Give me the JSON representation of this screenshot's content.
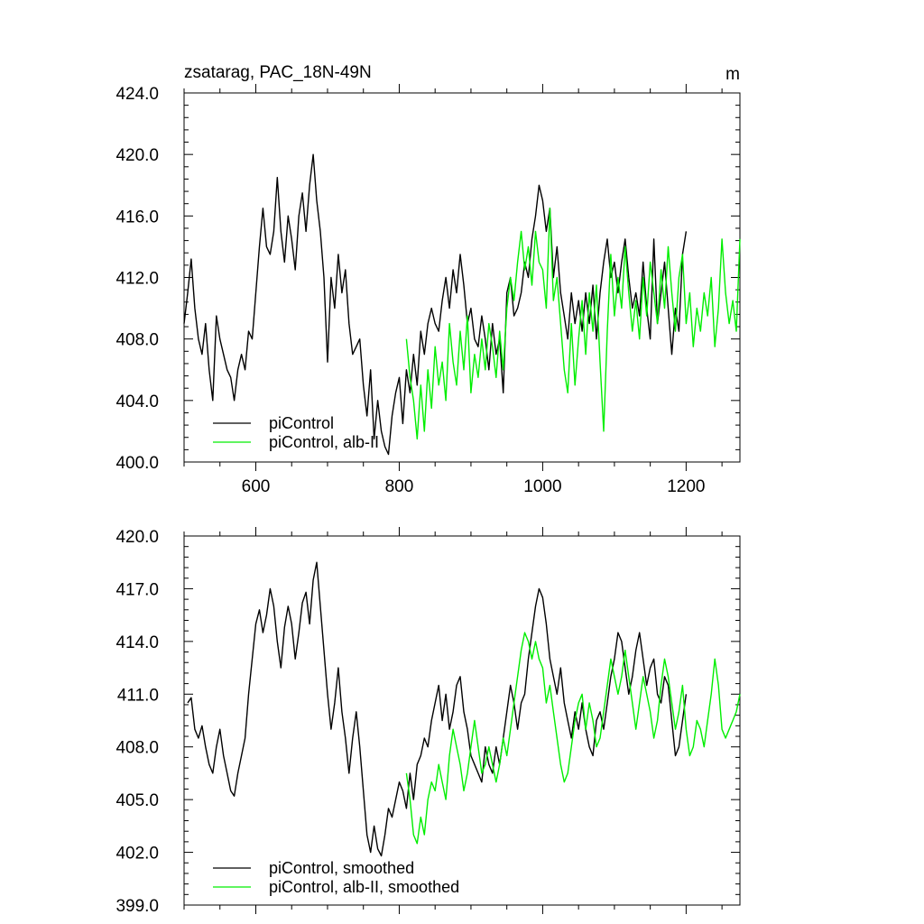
{
  "chart_data": [
    {
      "type": "line",
      "title": "zsatarag, PAC_18N-49N",
      "units_label": "m",
      "xlim": [
        500,
        1275
      ],
      "ylim": [
        400,
        424
      ],
      "x_ticks": [
        600,
        800,
        1000,
        1200
      ],
      "x_tick_labels": [
        "600",
        "800",
        "1000",
        "1200"
      ],
      "y_ticks": [
        400,
        404,
        408,
        412,
        416,
        420,
        424
      ],
      "y_tick_labels": [
        "400.0",
        "404.0",
        "408.0",
        "412.0",
        "416.0",
        "420.0",
        "424.0"
      ],
      "series": [
        {
          "name": "piControl",
          "color": "#000000",
          "x": [
            500,
            505,
            510,
            515,
            520,
            525,
            530,
            535,
            540,
            545,
            550,
            555,
            560,
            565,
            570,
            575,
            580,
            585,
            590,
            595,
            600,
            605,
            610,
            615,
            620,
            625,
            630,
            635,
            640,
            645,
            650,
            655,
            660,
            665,
            670,
            675,
            680,
            685,
            690,
            695,
            700,
            705,
            710,
            715,
            720,
            725,
            730,
            735,
            740,
            745,
            750,
            755,
            760,
            765,
            770,
            775,
            780,
            785,
            790,
            795,
            800,
            805,
            810,
            815,
            820,
            825,
            830,
            835,
            840,
            845,
            850,
            855,
            860,
            865,
            870,
            875,
            880,
            885,
            890,
            895,
            900,
            905,
            910,
            915,
            920,
            925,
            930,
            935,
            940,
            945,
            950,
            955,
            960,
            965,
            970,
            975,
            980,
            985,
            990,
            995,
            1000,
            1005,
            1010,
            1015,
            1020,
            1025,
            1030,
            1035,
            1040,
            1045,
            1050,
            1055,
            1060,
            1065,
            1070,
            1075,
            1080,
            1085,
            1090,
            1095,
            1100,
            1105,
            1110,
            1115,
            1120,
            1125,
            1130,
            1135,
            1140,
            1145,
            1150,
            1155,
            1160,
            1165,
            1170,
            1175,
            1180,
            1185,
            1190,
            1195,
            1200
          ],
          "y": [
            409.0,
            411.0,
            413.2,
            410.0,
            408.0,
            407.0,
            409.0,
            406.0,
            404.0,
            409.5,
            408.0,
            407.0,
            406.0,
            405.5,
            404.0,
            406.0,
            407.0,
            406.0,
            408.5,
            408.0,
            411.0,
            414.0,
            416.5,
            414.0,
            413.5,
            415.0,
            418.5,
            415.0,
            413.0,
            416.0,
            414.5,
            412.5,
            416.0,
            417.5,
            415.0,
            418.0,
            420.0,
            417.0,
            415.0,
            412.0,
            406.5,
            412.0,
            410.0,
            413.5,
            411.0,
            412.5,
            409.0,
            407.0,
            407.5,
            408.0,
            405.0,
            403.0,
            406.0,
            401.5,
            404.0,
            402.0,
            401.0,
            400.5,
            403.0,
            404.5,
            405.5,
            402.5,
            406.0,
            404.5,
            407.0,
            405.0,
            408.5,
            407.0,
            409.0,
            410.0,
            409.0,
            408.5,
            410.5,
            412.0,
            410.0,
            412.5,
            411.0,
            413.5,
            411.5,
            409.0,
            410.0,
            408.0,
            407.5,
            409.5,
            408.0,
            406.0,
            409.0,
            407.0,
            408.0,
            404.5,
            411.0,
            412.0,
            409.5,
            410.0,
            411.0,
            413.0,
            412.0,
            414.5,
            416.0,
            418.0,
            417.0,
            415.0,
            416.5,
            412.0,
            414.0,
            411.0,
            409.5,
            408.0,
            411.0,
            409.0,
            410.5,
            408.5,
            411.0,
            409.0,
            411.5,
            408.0,
            411.0,
            413.0,
            414.5,
            412.0,
            413.0,
            411.0,
            413.0,
            414.5,
            412.0,
            410.0,
            411.0,
            409.5,
            413.0,
            410.0,
            408.0,
            414.5,
            409.0,
            411.0,
            413.0,
            410.0,
            407.0,
            410.0,
            408.5,
            413.5,
            415.0
          ]
        },
        {
          "name": "piControl, alb-II",
          "color": "#00ee00",
          "x": [
            810,
            815,
            820,
            825,
            830,
            835,
            840,
            845,
            850,
            855,
            860,
            865,
            870,
            875,
            880,
            885,
            890,
            895,
            900,
            905,
            910,
            915,
            920,
            925,
            930,
            935,
            940,
            945,
            950,
            955,
            960,
            965,
            970,
            975,
            980,
            985,
            990,
            995,
            1000,
            1005,
            1010,
            1015,
            1020,
            1025,
            1030,
            1035,
            1040,
            1045,
            1050,
            1055,
            1060,
            1065,
            1070,
            1075,
            1080,
            1085,
            1090,
            1095,
            1100,
            1105,
            1110,
            1115,
            1120,
            1125,
            1130,
            1135,
            1140,
            1145,
            1150,
            1155,
            1160,
            1165,
            1170,
            1175,
            1180,
            1185,
            1190,
            1195,
            1200,
            1205,
            1210,
            1215,
            1220,
            1225,
            1230,
            1235,
            1240,
            1245,
            1250,
            1255,
            1260,
            1265,
            1270,
            1275
          ],
          "y": [
            408.0,
            405.5,
            404.0,
            401.5,
            405.0,
            402.0,
            406.0,
            403.5,
            407.5,
            405.0,
            406.5,
            404.0,
            409.0,
            406.5,
            405.0,
            408.5,
            406.0,
            409.5,
            404.5,
            407.0,
            405.5,
            408.0,
            406.0,
            409.0,
            407.5,
            405.5,
            408.5,
            406.0,
            410.0,
            412.0,
            410.5,
            413.0,
            415.0,
            412.5,
            414.0,
            411.5,
            415.0,
            413.0,
            412.5,
            410.0,
            416.5,
            410.5,
            412.0,
            409.0,
            406.0,
            404.5,
            409.0,
            405.0,
            408.0,
            410.5,
            407.0,
            411.0,
            408.5,
            411.5,
            406.5,
            402.0,
            408.5,
            413.5,
            409.5,
            412.0,
            410.0,
            414.0,
            411.0,
            408.5,
            410.5,
            408.0,
            412.0,
            409.5,
            413.0,
            411.0,
            409.0,
            412.5,
            410.0,
            414.0,
            411.0,
            408.5,
            412.0,
            413.5,
            409.0,
            411.0,
            407.5,
            410.0,
            408.5,
            411.0,
            409.5,
            412.0,
            407.5,
            410.0,
            414.5,
            411.0,
            409.0,
            410.5,
            408.5,
            414.5
          ]
        }
      ],
      "legend": [
        "piControl",
        "piControl, alb-II"
      ],
      "legend_position": "bottom-left"
    },
    {
      "type": "line",
      "title": "",
      "xlim": [
        500,
        1275
      ],
      "ylim": [
        399,
        420
      ],
      "x_ticks": [
        600,
        800,
        1000,
        1200
      ],
      "y_ticks": [
        399,
        402,
        405,
        408,
        411,
        414,
        417,
        420
      ],
      "y_tick_labels": [
        "399.0",
        "402.0",
        "405.0",
        "408.0",
        "411.0",
        "414.0",
        "417.0",
        "420.0"
      ],
      "series": [
        {
          "name": "piControl, smoothed",
          "color": "#000000",
          "x": [
            505,
            510,
            515,
            520,
            525,
            530,
            535,
            540,
            545,
            550,
            555,
            560,
            565,
            570,
            575,
            580,
            585,
            590,
            595,
            600,
            605,
            610,
            615,
            620,
            625,
            630,
            635,
            640,
            645,
            650,
            655,
            660,
            665,
            670,
            675,
            680,
            685,
            690,
            695,
            700,
            705,
            710,
            715,
            720,
            725,
            730,
            735,
            740,
            745,
            750,
            755,
            760,
            765,
            770,
            775,
            780,
            785,
            790,
            795,
            800,
            805,
            810,
            815,
            820,
            825,
            830,
            835,
            840,
            845,
            850,
            855,
            860,
            865,
            870,
            875,
            880,
            885,
            890,
            895,
            900,
            905,
            910,
            915,
            920,
            925,
            930,
            935,
            940,
            945,
            950,
            955,
            960,
            965,
            970,
            975,
            980,
            985,
            990,
            995,
            1000,
            1005,
            1010,
            1015,
            1020,
            1025,
            1030,
            1035,
            1040,
            1045,
            1050,
            1055,
            1060,
            1065,
            1070,
            1075,
            1080,
            1085,
            1090,
            1095,
            1100,
            1105,
            1110,
            1115,
            1120,
            1125,
            1130,
            1135,
            1140,
            1145,
            1150,
            1155,
            1160,
            1165,
            1170,
            1175,
            1180,
            1185,
            1190,
            1195,
            1200
          ],
          "y": [
            410.5,
            410.8,
            409.0,
            408.5,
            409.2,
            408.0,
            407.0,
            406.5,
            408.0,
            409.0,
            407.5,
            406.5,
            405.5,
            405.2,
            406.5,
            407.5,
            408.5,
            411.0,
            413.0,
            415.0,
            415.8,
            414.5,
            415.5,
            417.0,
            416.0,
            414.0,
            412.5,
            414.8,
            416.0,
            415.0,
            413.0,
            414.5,
            416.2,
            416.8,
            415.0,
            417.5,
            418.5,
            416.0,
            413.5,
            411.0,
            409.0,
            410.5,
            412.5,
            410.0,
            408.5,
            406.5,
            408.5,
            410.0,
            408.0,
            405.5,
            403.0,
            402.0,
            403.5,
            402.2,
            401.8,
            403.0,
            404.5,
            404.0,
            405.0,
            406.0,
            405.5,
            404.5,
            406.5,
            405.0,
            407.0,
            407.5,
            408.5,
            408.0,
            409.5,
            410.5,
            411.5,
            409.5,
            411.0,
            409.0,
            410.0,
            411.5,
            412.0,
            410.0,
            409.0,
            407.5,
            407.0,
            406.5,
            406.0,
            408.0,
            407.0,
            406.5,
            408.0,
            407.0,
            408.5,
            410.0,
            411.5,
            410.5,
            409.0,
            410.5,
            411.0,
            413.0,
            414.5,
            416.0,
            417.0,
            416.5,
            415.0,
            413.0,
            412.0,
            411.0,
            412.5,
            410.5,
            409.5,
            408.5,
            410.0,
            409.0,
            410.5,
            409.0,
            408.0,
            407.5,
            409.5,
            410.0,
            409.0,
            410.5,
            412.0,
            413.0,
            414.5,
            414.0,
            412.5,
            411.0,
            412.0,
            413.5,
            414.5,
            413.0,
            411.5,
            412.5,
            413.0,
            411.0,
            410.5,
            412.0,
            411.5,
            409.5,
            407.5,
            408.0,
            409.5,
            411.0
          ]
        },
        {
          "name": "piControl, alb-II, smoothed",
          "color": "#00ee00",
          "x": [
            810,
            815,
            820,
            825,
            830,
            835,
            840,
            845,
            850,
            855,
            860,
            865,
            870,
            875,
            880,
            885,
            890,
            895,
            900,
            905,
            910,
            915,
            920,
            925,
            930,
            935,
            940,
            945,
            950,
            955,
            960,
            965,
            970,
            975,
            980,
            985,
            990,
            995,
            1000,
            1005,
            1010,
            1015,
            1020,
            1025,
            1030,
            1035,
            1040,
            1045,
            1050,
            1055,
            1060,
            1065,
            1070,
            1075,
            1080,
            1085,
            1090,
            1095,
            1100,
            1105,
            1110,
            1115,
            1120,
            1125,
            1130,
            1135,
            1140,
            1145,
            1150,
            1155,
            1160,
            1165,
            1170,
            1175,
            1180,
            1185,
            1190,
            1195,
            1200,
            1205,
            1210,
            1215,
            1220,
            1225,
            1230,
            1235,
            1240,
            1245,
            1250,
            1255,
            1260,
            1265,
            1270,
            1275
          ],
          "y": [
            406.5,
            405.0,
            403.0,
            402.5,
            404.0,
            403.0,
            405.0,
            406.0,
            405.5,
            407.0,
            406.0,
            405.0,
            407.5,
            409.0,
            408.0,
            407.0,
            405.5,
            406.5,
            408.0,
            409.5,
            408.0,
            406.5,
            407.0,
            408.0,
            407.0,
            406.0,
            407.0,
            408.5,
            407.5,
            409.0,
            410.5,
            412.0,
            413.5,
            414.5,
            414.0,
            413.0,
            414.0,
            413.0,
            412.5,
            410.5,
            411.5,
            410.0,
            408.5,
            407.0,
            406.0,
            406.5,
            408.0,
            409.5,
            410.5,
            411.0,
            409.0,
            410.5,
            409.5,
            408.0,
            408.5,
            410.0,
            411.5,
            413.0,
            412.0,
            411.0,
            412.0,
            413.5,
            412.0,
            410.5,
            409.0,
            410.5,
            412.0,
            411.0,
            410.0,
            408.5,
            409.5,
            411.5,
            413.0,
            412.0,
            410.5,
            409.0,
            410.0,
            411.5,
            409.0,
            407.5,
            408.0,
            409.5,
            409.0,
            408.0,
            409.5,
            411.0,
            413.0,
            411.5,
            409.0,
            408.5,
            409.0,
            409.5,
            410.0,
            411.0
          ]
        }
      ],
      "legend": [
        "piControl, smoothed",
        "piControl, alb-II, smoothed"
      ],
      "legend_position": "bottom-left"
    }
  ]
}
